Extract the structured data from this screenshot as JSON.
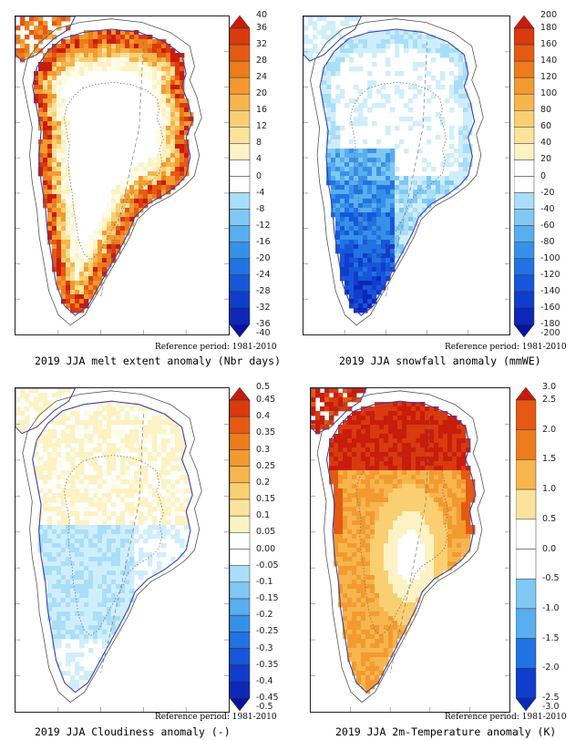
{
  "colors": {
    "positive": [
      "#fffbe6",
      "#fdf2c3",
      "#fbe39b",
      "#f9cf72",
      "#f6b54d",
      "#f29a2f",
      "#ec7c1c",
      "#e45a12",
      "#d93a0e",
      "#c81c0c"
    ],
    "negative": [
      "#cfeefc",
      "#a9def8",
      "#80c8f3",
      "#58aeee",
      "#3790e8",
      "#2172e2",
      "#1656da",
      "#103dcc",
      "#0d27b8",
      "#0a14a0"
    ],
    "neutral": "#ffffff",
    "coast": "#3a3fb0",
    "contour": "#555555"
  },
  "panels": [
    {
      "caption": "2019 JJA melt extent anomaly (Nbr days)",
      "reference": "Reference period: 1981-2010",
      "pattern": "melt",
      "colorbar_labels": [
        "40",
        "36",
        "32",
        "28",
        "24",
        "20",
        "16",
        "12",
        "8",
        "4",
        "0",
        "-4",
        "-8",
        "-12",
        "-16",
        "-20",
        "-24",
        "-28",
        "-32",
        "-36",
        "-40"
      ]
    },
    {
      "caption": "2019 JJA snowfall anomaly (mmWE)",
      "reference": "Reference period: 1981-2010",
      "pattern": "snow",
      "colorbar_labels": [
        "200",
        "180",
        "160",
        "140",
        "120",
        "100",
        "80",
        "60",
        "40",
        "20",
        "0",
        "-20",
        "-40",
        "-60",
        "-80",
        "-100",
        "-120",
        "-140",
        "-160",
        "-180",
        "-200"
      ]
    },
    {
      "caption": "2019 JJA Cloudiness anomaly (-)",
      "reference": "Reference period: 1981-2010",
      "pattern": "cloud",
      "colorbar_labels": [
        "0.5",
        "0.45",
        "0.4",
        "0.35",
        "0.3",
        "0.25",
        "0.2",
        "0.15",
        "0.1",
        "0.05",
        "0.00",
        "-0.05",
        "-0.1",
        "-0.15",
        "-0.2",
        "-0.25",
        "-0.3",
        "-0.35",
        "-0.4",
        "-0.45",
        "-0.5"
      ]
    },
    {
      "caption": "2019 JJA 2m-Temperature anomaly (K)",
      "reference": "Reference period: 1981-2010",
      "pattern": "temp",
      "colorbar_labels": [
        "3.0",
        "2.5",
        "2.0",
        "1.5",
        "1.0",
        "0.5",
        "0.0",
        "-0.5",
        "-1.0",
        "-1.5",
        "-2.0",
        "-2.5",
        "-3.0"
      ]
    }
  ]
}
